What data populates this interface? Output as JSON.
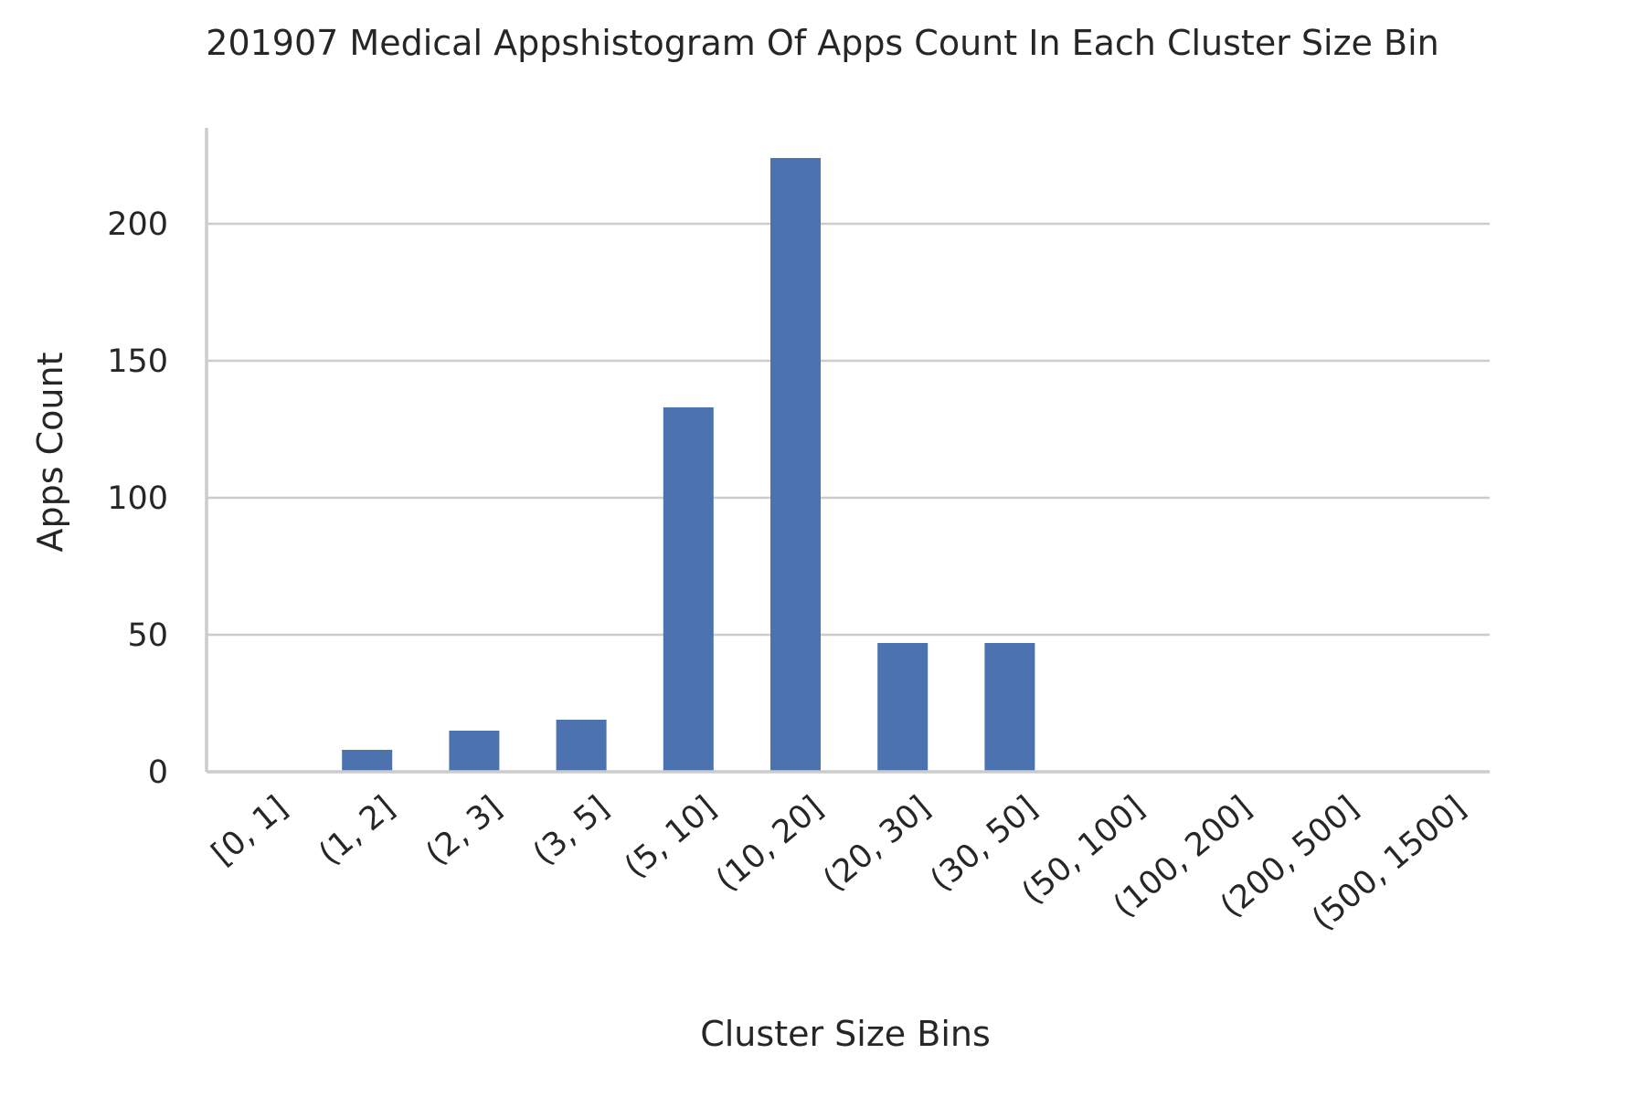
{
  "chart_data": {
    "type": "bar",
    "title": "201907 Medical Appshistogram Of Apps Count In Each Cluster Size Bin",
    "xlabel": "Cluster Size Bins",
    "ylabel": "Apps Count",
    "categories": [
      "[0, 1]",
      "(1, 2]",
      "(2, 3]",
      "(3, 5]",
      "(5, 10]",
      "(10, 20]",
      "(20, 30]",
      "(30, 50]",
      "(50, 100]",
      "(100, 200]",
      "(200, 500]",
      "(500, 1500]"
    ],
    "values": [
      0,
      8,
      15,
      19,
      133,
      224,
      47,
      47,
      0,
      0,
      0,
      0
    ],
    "ylim": [
      0,
      235
    ],
    "yticks": [
      0,
      50,
      100,
      150,
      200
    ],
    "grid": "horizontal",
    "legend": "none",
    "bar_color": "#4c72b0",
    "grid_color": "#cccccc",
    "text_color": "#262626"
  }
}
